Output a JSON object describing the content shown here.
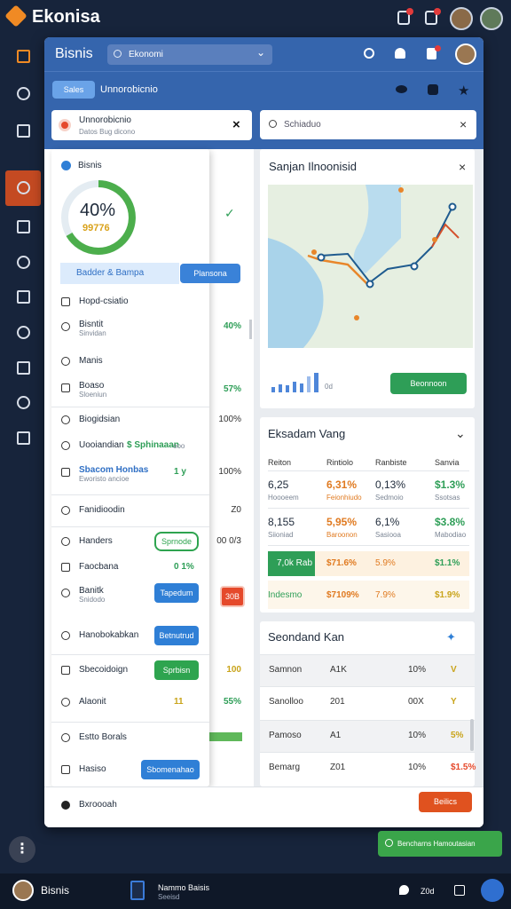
{
  "app": {
    "brand": "Ekonisa"
  },
  "window": {
    "title": "Bisnis",
    "search": "Ekonomi"
  },
  "toolbar": {
    "button": "Sales",
    "label": "Unnorobicnio"
  },
  "filter": {
    "title": "Unnorobicnio",
    "subtitle": "Datos Bug dicono",
    "search": "Schiaduo"
  },
  "dropdown": {
    "header": "Bisnis",
    "gauge_label": "40%",
    "gauge_sub": "99776",
    "promo": "Badder & Bampa",
    "promo_button": "Plansona",
    "items": [
      {
        "text": "Hopd-csiatio"
      },
      {
        "text": "Bisntit",
        "sub": "Sinvidan"
      },
      {
        "text": "Manis"
      },
      {
        "text": "Boaso",
        "sub": "Sloeniun"
      },
      {
        "text": "Biogidsian"
      },
      {
        "text": "Uooiandian",
        "value": "$ Sphinaaan",
        "extra": "ooo"
      },
      {
        "text": "Sbacom Honbas",
        "sub": "Eworisto ancioe",
        "value": "1 y"
      },
      {
        "text": "Fanidioodin"
      },
      {
        "text": "Handers",
        "button": "Sprnode"
      },
      {
        "text": "Faocbana",
        "value": "0 1%"
      },
      {
        "text": "Banitk",
        "sub": "Snidodo",
        "button": "Tapedum"
      },
      {
        "text": "Hanobokabkan",
        "button": "Betnutrud"
      },
      {
        "text": "Sbecoidoign",
        "button": "Sprbisn"
      },
      {
        "text": "Alaonit",
        "value": "11"
      },
      {
        "text": "Estto Borals"
      },
      {
        "text": "Hasiso",
        "button": "Sbomenahao"
      }
    ]
  },
  "background_column": [
    "40%",
    "57%",
    "100%",
    "100%",
    "Z0",
    "00 0/3",
    "30B",
    "100",
    "55%"
  ],
  "map_card": {
    "title": "Sanjan Ilnoonisid",
    "note": "0d",
    "button": "Beonnoon"
  },
  "table_card": {
    "title": "Eksadam Vang",
    "headers": [
      "Reiton",
      "Rintiolo",
      "Ranbiste",
      "Sanvia"
    ],
    "rows": [
      {
        "cells": [
          "6,25",
          "6,31%",
          "0,13%",
          "$1.3%"
        ],
        "subs": [
          "Hoooeem",
          "Feionhiudo",
          "Sedmoio",
          "Ssotsas"
        ]
      },
      {
        "cells": [
          "8,155",
          "5,95%",
          "6,1%",
          "$3.8%"
        ],
        "subs": [
          "Siioniad",
          "Baroonon",
          "Sasiooa",
          "Mabodiao"
        ]
      },
      {
        "cells": [
          "7,0k Rab",
          "$71.6%",
          "5.9%",
          "$1.1%"
        ]
      },
      {
        "cells": [
          "Indesmo",
          "$7109%",
          "7.9%",
          "$1.9%"
        ]
      }
    ]
  },
  "list_card": {
    "title": "Seondand Kan",
    "rows": [
      [
        "Samnon",
        "A1K",
        "10%",
        "V"
      ],
      [
        "Sanolloo",
        "201",
        "00X",
        "Y"
      ],
      [
        "Pamoso",
        "A1",
        "10%",
        "5%"
      ],
      [
        "Bemarg",
        "Z01",
        "10%",
        "$1.5%"
      ]
    ]
  },
  "window_footer": {
    "text": "Bxroooah",
    "button": "Beilics"
  },
  "toast": "Bencharns Hamoutasian",
  "taskbar": {
    "user": "Bisnis",
    "doc_title": "Nammo Baisis",
    "doc_sub": "Seeisd",
    "status": "Z0d"
  }
}
